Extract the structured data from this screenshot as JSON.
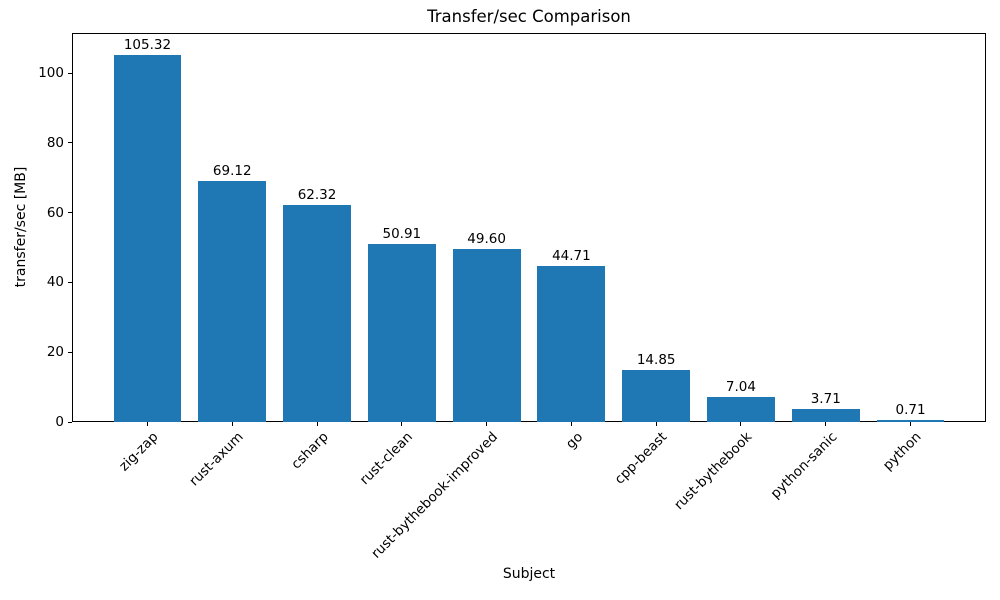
{
  "chart_data": {
    "type": "bar",
    "title": "Transfer/sec Comparison",
    "xlabel": "Subject",
    "ylabel": "transfer/sec [MB]",
    "categories": [
      "zig-zap",
      "rust-axum",
      "csharp",
      "rust-clean",
      "rust-bythebook-improved",
      "go",
      "cpp-beast",
      "rust-bythebook",
      "python-sanic",
      "python"
    ],
    "values": [
      105.32,
      69.12,
      62.32,
      50.91,
      49.6,
      44.71,
      14.85,
      7.04,
      3.71,
      0.71
    ],
    "value_labels": [
      "105.32",
      "69.12",
      "62.32",
      "50.91",
      "49.60",
      "44.71",
      "14.85",
      "7.04",
      "3.71",
      "0.71"
    ],
    "yticks": [
      0,
      20,
      40,
      60,
      80,
      100
    ],
    "ylim": [
      0,
      111.5
    ],
    "bar_color": "#1f77b4",
    "text_color": "#000000",
    "grid": false,
    "legend_position": "none"
  }
}
